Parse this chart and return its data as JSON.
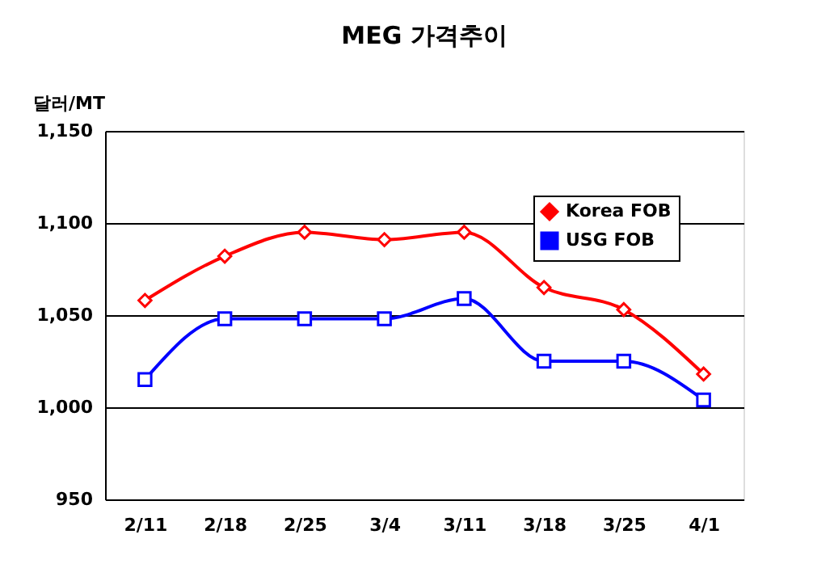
{
  "chart_data": {
    "type": "line",
    "title": "MEG 가격추이",
    "ylabel": "달러/MT",
    "categories": [
      "2/11",
      "2/18",
      "2/25",
      "3/4",
      "3/11",
      "3/18",
      "3/25",
      "4/1"
    ],
    "series": [
      {
        "name": "Korea FOB",
        "color": "#ff0000",
        "marker": "diamond",
        "values": [
          1058,
          1082,
          1095,
          1091,
          1095,
          1065,
          1053,
          1018
        ]
      },
      {
        "name": "USG FOB",
        "color": "#0000ff",
        "marker": "square",
        "values": [
          1015,
          1048,
          1048,
          1048,
          1059,
          1025,
          1025,
          1004
        ]
      }
    ],
    "ylim": [
      950,
      1150
    ],
    "yticks": [
      {
        "value": 950,
        "label": "950"
      },
      {
        "value": 1000,
        "label": "1,000"
      },
      {
        "value": 1050,
        "label": "1,050"
      },
      {
        "value": 1100,
        "label": "1,100"
      },
      {
        "value": 1150,
        "label": "1,150"
      }
    ],
    "grid": "y",
    "legend": "top right",
    "line_style": "solid"
  }
}
